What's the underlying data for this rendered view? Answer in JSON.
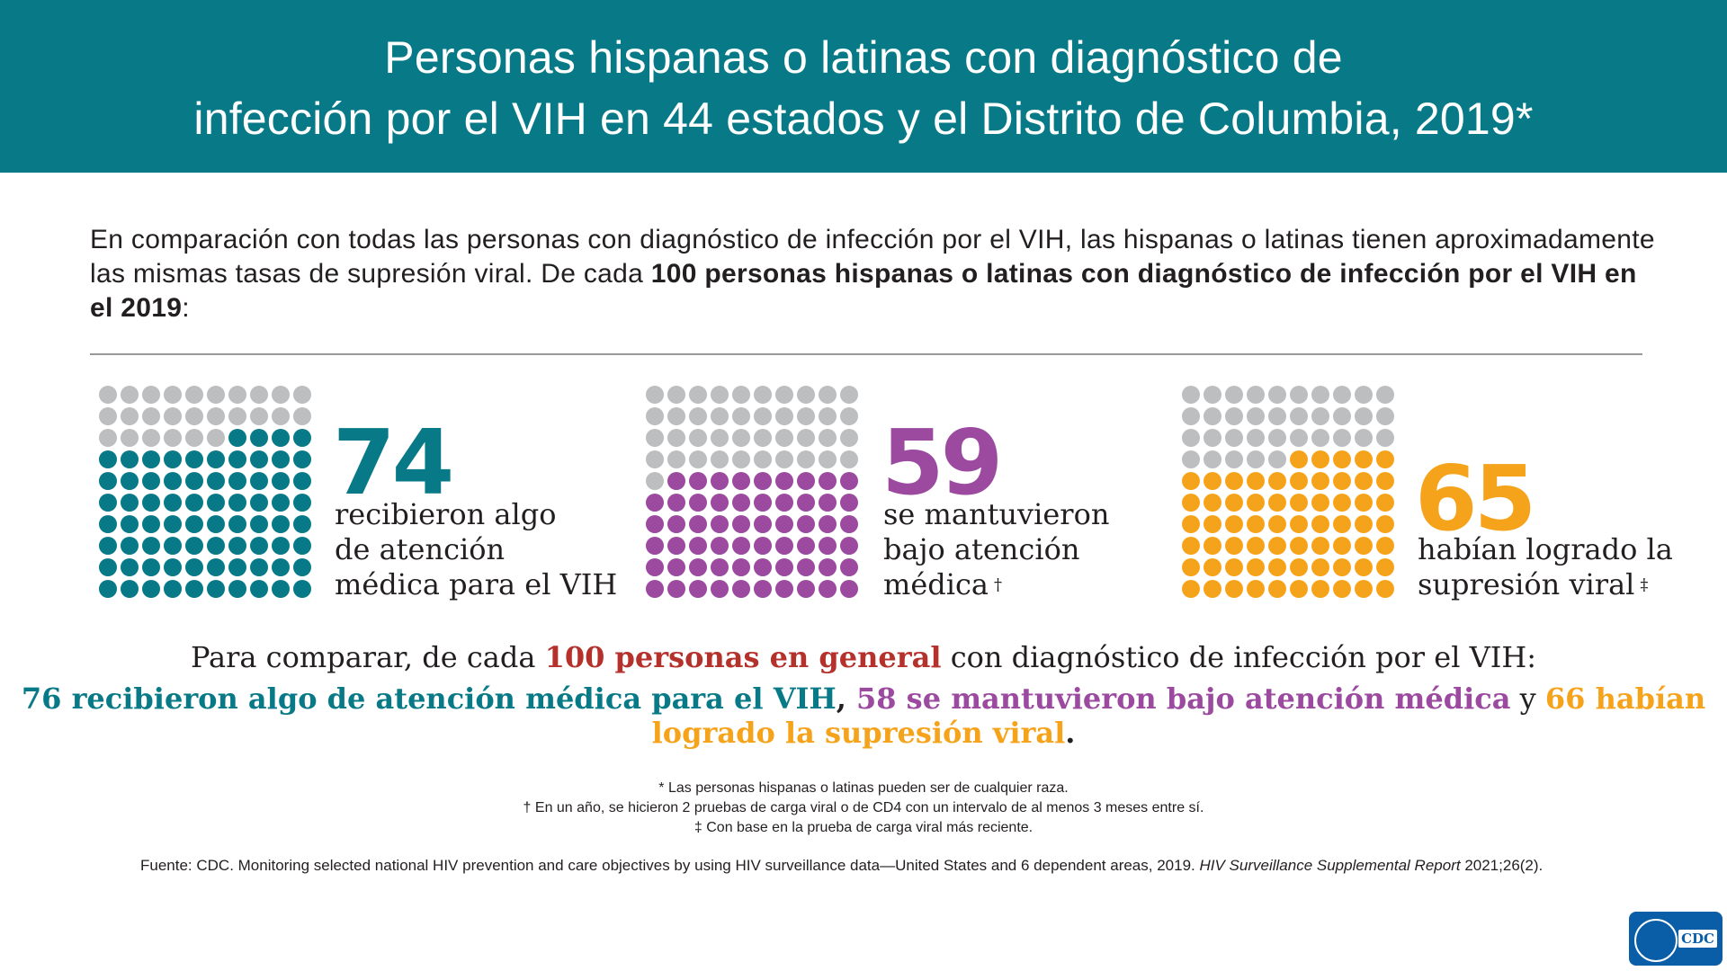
{
  "header": {
    "title_line1": "Personas hispanas o latinas con diagnóstico de",
    "title_line2": "infección por el VIH en 44 estados y el Distrito de Columbia, 2019*"
  },
  "intro": {
    "text_regular": "En comparación con todas las personas con diagnóstico de infección por el VIH, las hispanas o latinas tienen aproximadamente las mismas tasas de supresión viral. De cada ",
    "text_bold": "100 personas hispanas o latinas con diagnóstico de infección por el VIH en el 2019",
    "text_end": ":"
  },
  "stats": [
    {
      "value": "74",
      "count": 74,
      "color": "#087a87",
      "line1": "recibieron algo",
      "line2": "de atención",
      "line3": "médica para el VIH",
      "mark": ""
    },
    {
      "value": "59",
      "count": 59,
      "color": "#9b4a9f",
      "line1": "se mantuvieron",
      "line2": "bajo atención",
      "line3": "médica",
      "mark": "†"
    },
    {
      "value": "65",
      "count": 65,
      "color": "#f6a31c",
      "line1": "habían logrado la",
      "line2": "supresión viral",
      "line3": "",
      "mark": "‡"
    }
  ],
  "grid_total": 100,
  "comparison": {
    "line1_a": "Para comparar, de cada ",
    "line1_highlight": "100 personas en general",
    "line1_b": " con diagnóstico de infección por el VIH:",
    "part1": "76 recibieron algo de atención médica para el VIH",
    "sep1": ", ",
    "part2": "58 se mantuvieron bajo atención médica",
    "sep2": " y ",
    "part3": "66 habían logrado la supresión viral",
    "end": "."
  },
  "footnotes": {
    "note1": "* Las personas hispanas o latinas pueden ser de cualquier raza.",
    "note2": "† En un año, se hicieron 2 pruebas de carga viral o de CD4 con un intervalo de al menos 3 meses entre sí.",
    "note3": "‡ Con base en la prueba de carga viral más reciente."
  },
  "source": {
    "text": "Fuente: CDC. Monitoring selected national HIV prevention and care objectives by using HIV surveillance data—United States and 6 dependent areas, 2019. ",
    "italic": "HIV Surveillance Supplemental Report",
    "end": " 2021;26(2)."
  },
  "logo": {
    "text": "CDC"
  },
  "colors": {
    "teal": "#087a87",
    "purple": "#9b4a9f",
    "orange": "#f6a31c",
    "red": "#b5312c",
    "gray_dot": "#bcbec0"
  }
}
